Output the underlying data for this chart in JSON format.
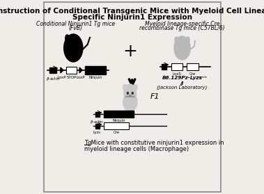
{
  "title_line1": "Construction of Conditional Transgenic Mice with Myeloid Cell Lineage",
  "title_line2": "Specific Ninjurin1 Expression",
  "title_fontsize": 7.5,
  "bg_color": "#f0ede8",
  "border_color": "#888888",
  "left_label1": "Conditional Ninjurin1 Tg mice",
  "left_label2": "(FvB)",
  "right_label1": "Myeloid lineage-specific Cre",
  "right_label2": "recombinase Tg mice (C57BL/6)",
  "jackson_label1": "B6.129Pz-Lyzs",
  "jackson_label2": "(Jackson Laboratory)",
  "f1_label": "F1",
  "bottom_label1": "Tg Mice with constitutive ninjurin1 expression in",
  "bottom_label2": "myeloid lineage cells (Macrophage)"
}
